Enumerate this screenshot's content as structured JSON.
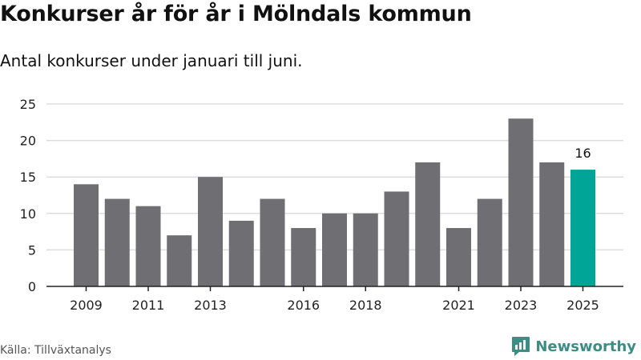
{
  "title": "Konkurser år för år i Mölndals kommun",
  "subtitle": "Antal konkurser under januari till juni.",
  "source": "Källa: Tillväxtanalys",
  "brand": "Newsworthy",
  "colors": {
    "bar": "#6e6e73",
    "highlight": "#00a597",
    "grid": "#dddddd",
    "brand": "#3d8c86"
  },
  "chart_data": {
    "type": "bar",
    "categories": [
      "2009",
      "2010",
      "2011",
      "2012",
      "2013",
      "2014",
      "2015",
      "2016",
      "2017",
      "2018",
      "2019",
      "2020",
      "2021",
      "2022",
      "2023",
      "2024",
      "2025"
    ],
    "values": [
      14,
      12,
      11,
      7,
      15,
      9,
      12,
      8,
      10,
      10,
      13,
      17,
      8,
      12,
      23,
      17,
      16
    ],
    "x_tick_labels": [
      "2009",
      "2011",
      "2013",
      "2016",
      "2018",
      "2021",
      "2023",
      "2025"
    ],
    "y_ticks": [
      0,
      5,
      10,
      15,
      20,
      25
    ],
    "ylim": [
      0,
      25
    ],
    "highlight": {
      "category": "2025",
      "label": "16"
    },
    "grid": true
  }
}
